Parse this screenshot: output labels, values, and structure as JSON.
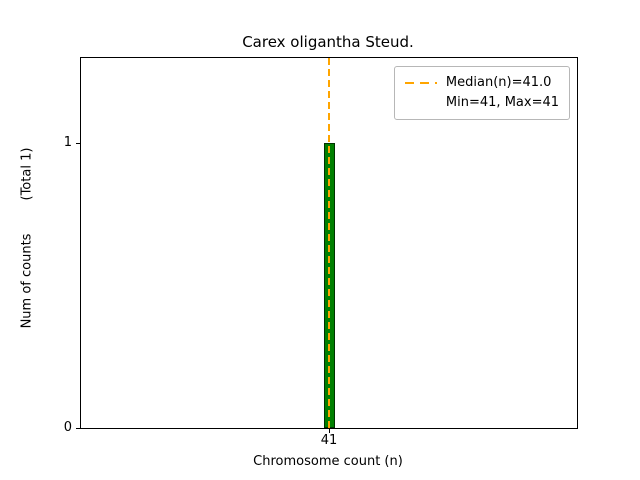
{
  "chart_data": {
    "type": "bar",
    "title": "Carex oligantha Steud.",
    "xlabel": "Chromosome count (n)",
    "ylabel": "Num of counts        (Total 1)",
    "xlim": [
      40.5,
      41.5
    ],
    "ylim": [
      0,
      1.3
    ],
    "grid": false,
    "xticks": [
      {
        "value": 41,
        "label": "41"
      }
    ],
    "yticks": [
      {
        "value": 0,
        "label": "0"
      },
      {
        "value": 1,
        "label": "1"
      }
    ],
    "bars": [
      {
        "x": 41,
        "height": 1
      }
    ],
    "bar_color": "#008000",
    "bar_edge_color": "#003300",
    "median_line": {
      "x": 41,
      "color": "#ffa500",
      "style": "dashed"
    },
    "legend": {
      "position": "upper-right",
      "entries": [
        {
          "label": "Median(n)=41.0",
          "sample": "dashed-line",
          "color": "#ffa500"
        },
        {
          "label": "Min=41, Max=41",
          "sample": "none"
        }
      ]
    }
  }
}
